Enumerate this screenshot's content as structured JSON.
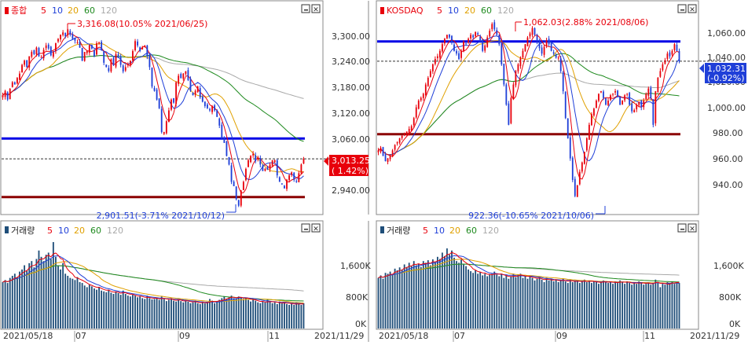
{
  "panels": [
    {
      "id": "kospi",
      "price": {
        "legend": {
          "name": "종합",
          "ma": [
            "5",
            "10",
            "20",
            "60",
            "120"
          ]
        },
        "y_ticks": [
          "3,300.00",
          "3,240.00",
          "3,180.00",
          "3,120.00",
          "3,060.00",
          "2,940.00"
        ],
        "current_label": {
          "value": "3,013.25",
          "change": "( 1.42%)"
        },
        "high_annotation": "3,316.08(10.05% 2021/06/25)",
        "low_annotation": "2,901.51(-3.71% 2021/10/12)"
      },
      "volume": {
        "legend": {
          "name": "거래량",
          "ma": [
            "5",
            "10",
            "20",
            "60",
            "120"
          ]
        },
        "y_ticks": [
          "1,600K",
          "800K",
          "0K"
        ]
      },
      "x_axis": {
        "start_label": "2021/05/18",
        "end_label": "2021/11/29",
        "month_labels": [
          "07",
          "09",
          "11"
        ]
      }
    },
    {
      "id": "kosdaq",
      "price": {
        "legend": {
          "name": "KOSDAQ",
          "ma": [
            "5",
            "10",
            "20",
            "60",
            "120"
          ]
        },
        "y_ticks": [
          "1,060.00",
          "1,040.00",
          "1,020.00",
          "1,000.00",
          "980.00",
          "960.00",
          "940.00"
        ],
        "current_label": {
          "value": "1,032.31",
          "change": "(-0.92%)"
        },
        "high_annotation": "1,062.03(2.88% 2021/08/06)",
        "low_annotation": "922.36(-10.65% 2021/10/06)"
      },
      "volume": {
        "legend": {
          "name": "거래량",
          "ma": [
            "5",
            "10",
            "20",
            "60",
            "120"
          ]
        },
        "y_ticks": [
          "1,600K",
          "800K",
          "0K"
        ]
      },
      "x_axis": {
        "start_label": "2021/05/18",
        "end_label": "2021/11/29",
        "month_labels": [
          "07",
          "09",
          "11"
        ]
      }
    }
  ],
  "chart_data": [
    {
      "type": "candlestick",
      "title": "종합",
      "ylim": [
        2890,
        3340
      ],
      "x_start": "2021/05/18",
      "x_end": "2021/11/29",
      "close": [
        3160,
        3170,
        3150,
        3175,
        3190,
        3185,
        3200,
        3210,
        3230,
        3240,
        3225,
        3250,
        3260,
        3255,
        3270,
        3250,
        3248,
        3265,
        3275,
        3268,
        3252,
        3260,
        3280,
        3290,
        3300,
        3305,
        3296,
        3312,
        3300,
        3290,
        3286,
        3282,
        3270,
        3240,
        3260,
        3262,
        3276,
        3268,
        3250,
        3280,
        3282,
        3264,
        3235,
        3225,
        3216,
        3243,
        3230,
        3255,
        3250,
        3230,
        3215,
        3225,
        3232,
        3240,
        3262,
        3285,
        3275,
        3262,
        3270,
        3275,
        3250,
        3225,
        3180,
        3170,
        3150,
        3130,
        3075,
        3075,
        3100,
        3125,
        3150,
        3143,
        3190,
        3205,
        3200,
        3210,
        3215,
        3195,
        3170,
        3160,
        3170,
        3180,
        3155,
        3145,
        3135,
        3130,
        3125,
        3135,
        3125,
        3110,
        3090,
        3060,
        3050,
        3020,
        3000,
        2960,
        2950,
        2920,
        2905,
        2940,
        2960,
        2990,
        3010,
        3020,
        3025,
        3008,
        3015,
        3000,
        2985,
        2990,
        2988,
        3000,
        3010,
        3010,
        2975,
        2960,
        2955,
        2945,
        2965,
        2975,
        2982,
        2965,
        2960,
        2980,
        3000,
        3013.25
      ],
      "volume": [
        1100,
        1150,
        1080,
        1200,
        1250,
        1300,
        1220,
        1350,
        1400,
        1500,
        1380,
        1550,
        1600,
        1450,
        1650,
        1850,
        1700,
        1600,
        1750,
        1800,
        1650,
        2050,
        1700,
        1500,
        1400,
        1550,
        1300,
        1250,
        1200,
        1180,
        1150,
        1220,
        1100,
        1080,
        1020,
        980,
        1040,
        1000,
        950,
        920,
        980,
        900,
        880,
        860,
        920,
        850,
        820,
        880,
        840,
        800,
        900,
        820,
        780,
        760,
        800,
        780,
        740,
        760,
        720,
        700,
        780,
        720,
        690,
        700,
        720,
        680,
        760,
        700,
        650,
        680,
        720,
        660,
        640,
        700,
        650,
        620,
        680,
        640,
        600,
        620,
        660,
        600,
        580,
        640,
        600,
        620,
        700,
        660,
        600,
        640,
        680,
        720,
        760,
        700,
        740,
        780,
        720,
        700,
        760,
        740,
        700,
        720,
        680,
        640,
        700,
        660,
        620,
        600,
        640,
        620,
        680,
        640,
        600,
        620,
        580,
        640,
        600,
        620,
        580,
        560,
        600,
        560,
        620,
        580,
        560,
        600
      ],
      "volume_ylim": [
        0,
        2200
      ]
    },
    {
      "type": "candlestick",
      "title": "KOSDAQ",
      "ylim": [
        920,
        1065
      ],
      "x_start": "2021/05/18",
      "x_end": "2021/11/29",
      "close": [
        966,
        968,
        962,
        958,
        960,
        962,
        966,
        970,
        972,
        975,
        977,
        978,
        980,
        982,
        984,
        990,
        998,
        1003,
        1005,
        1008,
        1015,
        1020,
        1025,
        1030,
        1034,
        1036,
        1040,
        1045,
        1049,
        1052,
        1050,
        1046,
        1040,
        1038,
        1034,
        1040,
        1047,
        1045,
        1049,
        1052,
        1050,
        1054,
        1052,
        1048,
        1040,
        1044,
        1050,
        1055,
        1060,
        1056,
        1052,
        1045,
        1030,
        1015,
        1000,
        985,
        1005,
        1015,
        1025,
        1030,
        1035,
        1040,
        1045,
        1050,
        1053,
        1057,
        1052,
        1047,
        1042,
        1038,
        1043,
        1048,
        1045,
        1040,
        1038,
        1035,
        1035,
        1025,
        1010,
        990,
        975,
        960,
        944,
        932,
        940,
        950,
        957,
        965,
        975,
        985,
        993,
        997,
        1003,
        1008,
        1010,
        1005,
        1000,
        1003,
        1007,
        1008,
        1010,
        1006,
        1000,
        1003,
        1007,
        1008,
        1000,
        995,
        996,
        1000,
        1002,
        998,
        1003,
        1008,
        1012,
        1005,
        985,
        1010,
        1020,
        1025,
        1030,
        1033,
        1038,
        1036,
        1040,
        1045,
        1040,
        1032.31
      ],
      "volume": [
        1200,
        1260,
        1180,
        1320,
        1300,
        1350,
        1280,
        1420,
        1380,
        1450,
        1400,
        1520,
        1460,
        1560,
        1480,
        1600,
        1500,
        1540,
        1460,
        1600,
        1560,
        1620,
        1500,
        1640,
        1580,
        1700,
        1650,
        1800,
        1720,
        1900,
        1750,
        1850,
        1680,
        1600,
        1560,
        1640,
        1520,
        1480,
        1400,
        1360,
        1320,
        1380,
        1300,
        1340,
        1260,
        1300,
        1240,
        1280,
        1300,
        1350,
        1280,
        1240,
        1300,
        1200,
        1260,
        1180,
        1240,
        1300,
        1220,
        1280,
        1300,
        1200,
        1240,
        1180,
        1260,
        1200,
        1140,
        1180,
        1220,
        1160,
        1100,
        1200,
        1140,
        1180,
        1120,
        1160,
        1100,
        1140,
        1180,
        1120,
        1080,
        1160,
        1100,
        1140,
        1120,
        1080,
        1120,
        1160,
        1100,
        1140,
        1080,
        1120,
        1100,
        1060,
        1100,
        1140,
        1120,
        1080,
        1100,
        1060,
        1120,
        1080,
        1140,
        1100,
        1060,
        1120,
        1080,
        1040,
        1100,
        1060,
        1120,
        1080,
        1040,
        1060,
        1100,
        1040,
        1080,
        1160,
        1100,
        980,
        1060,
        1040,
        1100,
        1080,
        1120,
        1060,
        1100,
        1080
      ],
      "volume_ylim": [
        0,
        2200
      ]
    }
  ],
  "colors": {
    "up": "#e8000b",
    "down": "#1f3fd8",
    "volume_bar": "#1f4e79",
    "ma5": "#e8000b",
    "ma10": "#1f3fd8",
    "ma20": "#e0a000",
    "ma60": "#1e8a1e",
    "ma120": "#a9a9a9",
    "support_blue": "#0000e6",
    "support_red": "#8b0000"
  },
  "reference_lines": {
    "kospi": {
      "blue": 3060,
      "darkred": 2925,
      "dotted": 3013.25
    },
    "kosdaq": {
      "blue": 1047,
      "darkred": 978,
      "dotted": 1032.31
    }
  }
}
